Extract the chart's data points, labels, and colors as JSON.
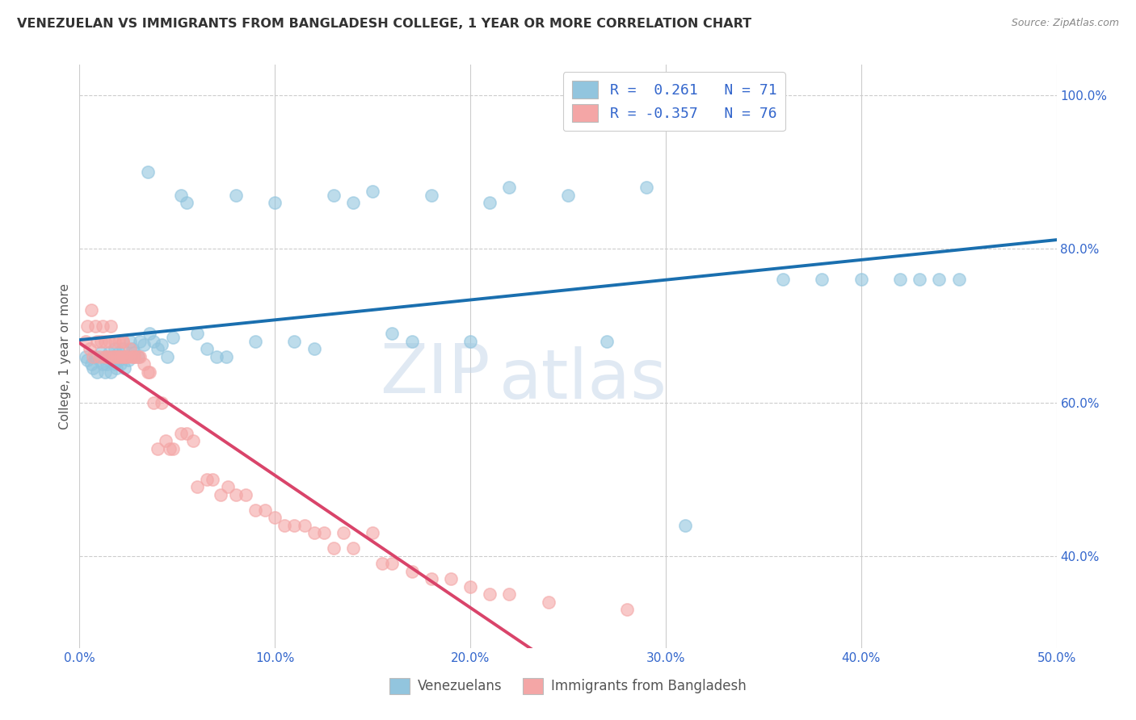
{
  "title": "VENEZUELAN VS IMMIGRANTS FROM BANGLADESH COLLEGE, 1 YEAR OR MORE CORRELATION CHART",
  "source": "Source: ZipAtlas.com",
  "ylabel": "College, 1 year or more",
  "xlim": [
    0.0,
    0.5
  ],
  "ylim": [
    0.28,
    1.04
  ],
  "xtick_labels": [
    "0.0%",
    "10.0%",
    "20.0%",
    "30.0%",
    "40.0%",
    "50.0%"
  ],
  "xtick_values": [
    0.0,
    0.1,
    0.2,
    0.3,
    0.4,
    0.5
  ],
  "ytick_labels": [
    "40.0%",
    "60.0%",
    "80.0%",
    "100.0%"
  ],
  "ytick_values": [
    0.4,
    0.6,
    0.8,
    1.0
  ],
  "r_venezuelan": 0.261,
  "n_venezuelan": 71,
  "r_bangladesh": -0.357,
  "n_bangladesh": 76,
  "color_venezuelan": "#92c5de",
  "color_bangladesh": "#f4a6a6",
  "color_line_venezuelan": "#1a6faf",
  "color_line_bangladesh": "#d9446a",
  "color_line_dash": "#cccccc",
  "watermark_zip": "ZIP",
  "watermark_atlas": "atlas",
  "legend_label_venezuelan": "Venezuelans",
  "legend_label_bangladesh": "Immigrants from Bangladesh",
  "venezuelan_x": [
    0.003,
    0.004,
    0.006,
    0.007,
    0.008,
    0.009,
    0.01,
    0.011,
    0.012,
    0.013,
    0.013,
    0.014,
    0.015,
    0.015,
    0.016,
    0.017,
    0.018,
    0.018,
    0.019,
    0.02,
    0.02,
    0.021,
    0.022,
    0.022,
    0.023,
    0.024,
    0.025,
    0.026,
    0.027,
    0.028,
    0.03,
    0.031,
    0.033,
    0.035,
    0.036,
    0.038,
    0.04,
    0.042,
    0.045,
    0.048,
    0.052,
    0.055,
    0.06,
    0.065,
    0.07,
    0.075,
    0.08,
    0.09,
    0.1,
    0.11,
    0.12,
    0.13,
    0.14,
    0.15,
    0.16,
    0.17,
    0.18,
    0.2,
    0.21,
    0.22,
    0.25,
    0.27,
    0.29,
    0.31,
    0.36,
    0.38,
    0.4,
    0.42,
    0.43,
    0.44,
    0.45
  ],
  "venezuelan_y": [
    0.66,
    0.655,
    0.65,
    0.645,
    0.66,
    0.64,
    0.655,
    0.665,
    0.65,
    0.64,
    0.66,
    0.65,
    0.655,
    0.665,
    0.64,
    0.66,
    0.65,
    0.67,
    0.645,
    0.655,
    0.665,
    0.65,
    0.66,
    0.67,
    0.645,
    0.66,
    0.655,
    0.68,
    0.67,
    0.665,
    0.66,
    0.68,
    0.675,
    0.9,
    0.69,
    0.68,
    0.67,
    0.675,
    0.66,
    0.685,
    0.87,
    0.86,
    0.69,
    0.67,
    0.66,
    0.66,
    0.87,
    0.68,
    0.86,
    0.68,
    0.67,
    0.87,
    0.86,
    0.875,
    0.69,
    0.68,
    0.87,
    0.68,
    0.86,
    0.88,
    0.87,
    0.68,
    0.88,
    0.44,
    0.76,
    0.76,
    0.76,
    0.76,
    0.76,
    0.76,
    0.76
  ],
  "bangladesh_x": [
    0.003,
    0.004,
    0.005,
    0.006,
    0.007,
    0.008,
    0.009,
    0.01,
    0.011,
    0.012,
    0.013,
    0.013,
    0.014,
    0.015,
    0.015,
    0.016,
    0.017,
    0.018,
    0.018,
    0.019,
    0.02,
    0.02,
    0.021,
    0.022,
    0.022,
    0.022,
    0.023,
    0.024,
    0.025,
    0.026,
    0.027,
    0.028,
    0.028,
    0.03,
    0.031,
    0.033,
    0.035,
    0.036,
    0.038,
    0.04,
    0.042,
    0.044,
    0.046,
    0.048,
    0.052,
    0.055,
    0.058,
    0.06,
    0.065,
    0.068,
    0.072,
    0.076,
    0.08,
    0.085,
    0.09,
    0.095,
    0.1,
    0.105,
    0.11,
    0.115,
    0.12,
    0.125,
    0.13,
    0.135,
    0.14,
    0.15,
    0.155,
    0.16,
    0.17,
    0.18,
    0.19,
    0.2,
    0.21,
    0.22,
    0.24,
    0.28
  ],
  "bangladesh_y": [
    0.68,
    0.7,
    0.67,
    0.72,
    0.66,
    0.7,
    0.68,
    0.66,
    0.68,
    0.7,
    0.66,
    0.68,
    0.66,
    0.68,
    0.66,
    0.7,
    0.66,
    0.68,
    0.66,
    0.66,
    0.66,
    0.68,
    0.66,
    0.68,
    0.66,
    0.68,
    0.66,
    0.66,
    0.66,
    0.67,
    0.66,
    0.66,
    0.66,
    0.66,
    0.66,
    0.65,
    0.64,
    0.64,
    0.6,
    0.54,
    0.6,
    0.55,
    0.54,
    0.54,
    0.56,
    0.56,
    0.55,
    0.49,
    0.5,
    0.5,
    0.48,
    0.49,
    0.48,
    0.48,
    0.46,
    0.46,
    0.45,
    0.44,
    0.44,
    0.44,
    0.43,
    0.43,
    0.41,
    0.43,
    0.41,
    0.43,
    0.39,
    0.39,
    0.38,
    0.37,
    0.37,
    0.36,
    0.35,
    0.35,
    0.34,
    0.33
  ]
}
